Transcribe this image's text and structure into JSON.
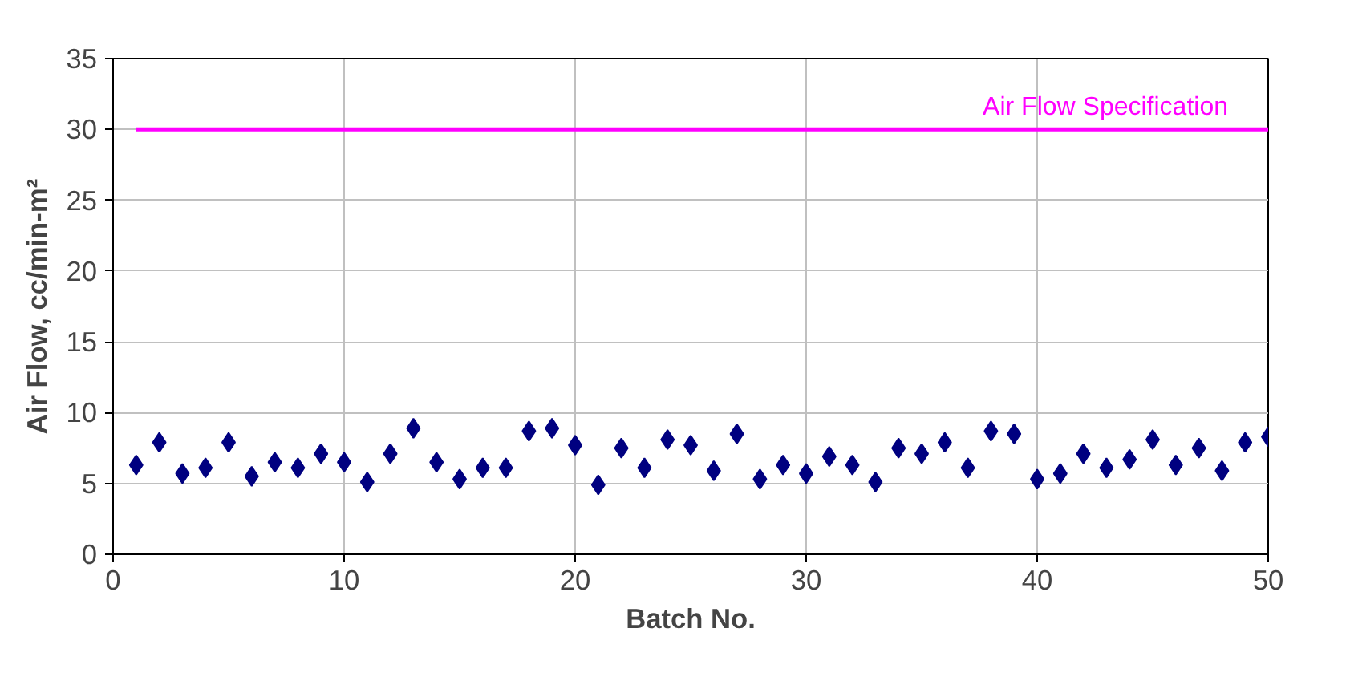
{
  "chart_data": {
    "type": "scatter",
    "xlabel": "Batch No.",
    "ylabel": "Air Flow, cc/min-m²",
    "x": [
      1,
      2,
      3,
      4,
      5,
      6,
      7,
      8,
      9,
      10,
      11,
      12,
      13,
      14,
      15,
      16,
      17,
      18,
      19,
      20,
      21,
      22,
      23,
      24,
      25,
      26,
      27,
      28,
      29,
      30,
      31,
      32,
      33,
      34,
      35,
      36,
      37,
      38,
      39,
      40,
      41,
      42,
      43,
      44,
      45,
      46,
      47,
      48,
      49,
      50
    ],
    "series": [
      {
        "color": "#000080",
        "marker": "diamond",
        "values": [
          6.3,
          7.9,
          5.7,
          6.1,
          7.9,
          5.5,
          6.5,
          6.1,
          7.1,
          6.5,
          5.1,
          7.1,
          8.9,
          6.5,
          5.3,
          6.1,
          6.1,
          8.7,
          8.9,
          7.7,
          4.9,
          7.5,
          6.1,
          8.1,
          7.7,
          5.9,
          8.5,
          5.3,
          6.3,
          5.7,
          6.9,
          6.3,
          5.1,
          7.5,
          7.1,
          7.9,
          6.1,
          8.7,
          8.5,
          5.3,
          5.7,
          7.1,
          6.1,
          6.7,
          8.1,
          6.3,
          7.5,
          5.9,
          7.9,
          8.3
        ]
      },
      {
        "type": "line",
        "name": "Air Flow Specification",
        "color": "#ff00ff",
        "x": [
          1,
          50
        ],
        "values": [
          30,
          30
        ]
      }
    ],
    "xlim": [
      0,
      50
    ],
    "xticks": [
      0,
      10,
      20,
      30,
      40,
      50
    ],
    "ylim": [
      0,
      35
    ],
    "yticks": [
      0,
      5,
      10,
      15,
      20,
      25,
      30,
      35
    ],
    "grid": true
  }
}
